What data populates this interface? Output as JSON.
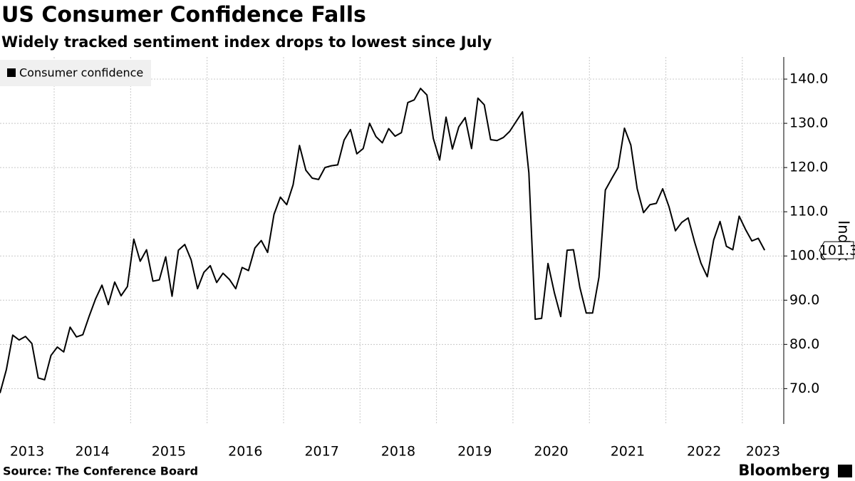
{
  "chart_data": {
    "type": "line",
    "title": "US Consumer Confidence Falls",
    "subtitle": "Widely tracked sentiment index drops to lowest since July",
    "source": "Source: The Conference Board",
    "brand": "Bloomberg",
    "y_label": "Index",
    "legend": "top-left",
    "grid": true,
    "x": [
      "2013-04",
      "2013-05",
      "2013-06",
      "2013-07",
      "2013-08",
      "2013-09",
      "2013-10",
      "2013-11",
      "2013-12",
      "2014-01",
      "2014-02",
      "2014-03",
      "2014-04",
      "2014-05",
      "2014-06",
      "2014-07",
      "2014-08",
      "2014-09",
      "2014-10",
      "2014-11",
      "2014-12",
      "2015-01",
      "2015-02",
      "2015-03",
      "2015-04",
      "2015-05",
      "2015-06",
      "2015-07",
      "2015-08",
      "2015-09",
      "2015-10",
      "2015-11",
      "2015-12",
      "2016-01",
      "2016-02",
      "2016-03",
      "2016-04",
      "2016-05",
      "2016-06",
      "2016-07",
      "2016-08",
      "2016-09",
      "2016-10",
      "2016-11",
      "2016-12",
      "2017-01",
      "2017-02",
      "2017-03",
      "2017-04",
      "2017-05",
      "2017-06",
      "2017-07",
      "2017-08",
      "2017-09",
      "2017-10",
      "2017-11",
      "2017-12",
      "2018-01",
      "2018-02",
      "2018-03",
      "2018-04",
      "2018-05",
      "2018-06",
      "2018-07",
      "2018-08",
      "2018-09",
      "2018-10",
      "2018-11",
      "2018-12",
      "2019-01",
      "2019-02",
      "2019-03",
      "2019-04",
      "2019-05",
      "2019-06",
      "2019-07",
      "2019-08",
      "2019-09",
      "2019-10",
      "2019-11",
      "2019-12",
      "2020-01",
      "2020-02",
      "2020-03",
      "2020-04",
      "2020-05",
      "2020-06",
      "2020-07",
      "2020-08",
      "2020-09",
      "2020-10",
      "2020-11",
      "2020-12",
      "2021-01",
      "2021-02",
      "2021-03",
      "2021-04",
      "2021-05",
      "2021-06",
      "2021-07",
      "2021-08",
      "2021-09",
      "2021-10",
      "2021-11",
      "2021-12",
      "2022-01",
      "2022-02",
      "2022-03",
      "2022-04",
      "2022-05",
      "2022-06",
      "2022-07",
      "2022-08",
      "2022-09",
      "2022-10",
      "2022-11",
      "2022-12",
      "2023-01",
      "2023-02",
      "2023-03",
      "2023-04"
    ],
    "series": [
      {
        "name": "Consumer confidence",
        "color": "#000000",
        "values": [
          69,
          74.3,
          82.1,
          81,
          81.8,
          80.2,
          72.4,
          72,
          77.5,
          79.4,
          78.3,
          83.9,
          81.7,
          82.2,
          86.4,
          90.3,
          93.4,
          89,
          94.1,
          91,
          93.1,
          103.8,
          98.8,
          101.4,
          94.3,
          94.6,
          99.8,
          90.9,
          101.3,
          102.6,
          99.1,
          92.6,
          96.3,
          97.8,
          94,
          96.1,
          94.7,
          92.6,
          97.4,
          96.7,
          101.8,
          103.5,
          100.8,
          109.4,
          113.3,
          111.6,
          116.1,
          125,
          119.4,
          117.6,
          117.3,
          120,
          120.4,
          120.6,
          126.2,
          128.6,
          123.1,
          124.3,
          130,
          127,
          125.6,
          128.8,
          127.1,
          127.9,
          134.7,
          135.3,
          137.9,
          136.4,
          126.6,
          121.7,
          131.4,
          124.2,
          129.2,
          131.3,
          124.3,
          135.7,
          134.2,
          126.3,
          126.1,
          126.8,
          128.2,
          130.4,
          132.6,
          118.8,
          85.7,
          85.9,
          98.3,
          91.7,
          86.3,
          101.3,
          101.4,
          92.9,
          87.1,
          87.1,
          95.2,
          114.9,
          117.5,
          120,
          128.9,
          125.1,
          115.2,
          109.8,
          111.6,
          111.9,
          115.2,
          111.1,
          105.7,
          107.6,
          108.6,
          103.2,
          98.4,
          95.3,
          103.6,
          107.8,
          102.2,
          101.4,
          109,
          106,
          103.4,
          104,
          101.3
        ]
      }
    ],
    "xlim": [
      "2013-04",
      "2023-07"
    ],
    "xticks": [
      "2013",
      "2014",
      "2015",
      "2016",
      "2017",
      "2018",
      "2019",
      "2020",
      "2021",
      "2022",
      "2023"
    ],
    "ylim": [
      62,
      145
    ],
    "yticks": [
      {
        "value": 70,
        "label": "70.0"
      },
      {
        "value": 80,
        "label": "80.0"
      },
      {
        "value": 90,
        "label": "90.0"
      },
      {
        "value": 100,
        "label": "100.0"
      },
      {
        "value": 110,
        "label": "110.0"
      },
      {
        "value": 120,
        "label": "120.0"
      },
      {
        "value": 130,
        "label": "130.0"
      },
      {
        "value": 140,
        "label": "140.0"
      }
    ]
  }
}
